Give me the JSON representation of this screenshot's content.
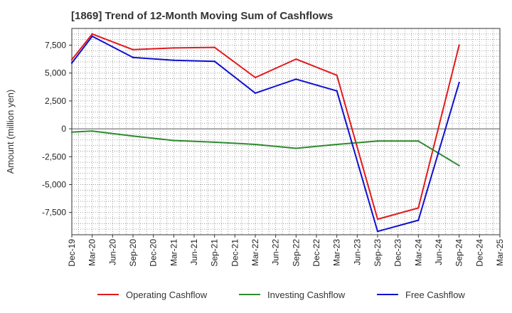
{
  "chart_data": {
    "type": "line",
    "title": "[1869]  Trend of 12-Month Moving Sum of Cashflows",
    "ylabel": "Amount (million yen)",
    "xlabel": "",
    "ylim": [
      -9500,
      9000
    ],
    "yticks": [
      7500,
      5000,
      2500,
      0,
      -2500,
      -5000,
      -7500
    ],
    "ytick_labels": [
      "7,500",
      "5,000",
      "2,500",
      "0",
      "-2,500",
      "-5,000",
      "-7,500"
    ],
    "categories": [
      "Dec-19",
      "Mar-20",
      "Jun-20",
      "Sep-20",
      "Dec-20",
      "Mar-21",
      "Jun-21",
      "Sep-21",
      "Dec-21",
      "Mar-22",
      "Jun-22",
      "Sep-22",
      "Dec-22",
      "Mar-23",
      "Jun-23",
      "Sep-23",
      "Dec-23",
      "Mar-24",
      "Jun-24",
      "Sep-24",
      "Dec-24",
      "Mar-25"
    ],
    "grid": true,
    "legend_position": "bottom",
    "series": [
      {
        "name": "Operating Cashflow",
        "color": "#e31a1c",
        "points": [
          [
            "Dec-19",
            6200
          ],
          [
            "Mar-20",
            8500
          ],
          [
            "Sep-20",
            7100
          ],
          [
            "Mar-21",
            7250
          ],
          [
            "Sep-21",
            7300
          ],
          [
            "Mar-22",
            4600
          ],
          [
            "Sep-22",
            6250
          ],
          [
            "Mar-23",
            4800
          ],
          [
            "Sep-23",
            -8100
          ],
          [
            "Mar-24",
            -7100
          ],
          [
            "Sep-24",
            7500
          ]
        ]
      },
      {
        "name": "Investing Cashflow",
        "color": "#2e8b2e",
        "points": [
          [
            "Dec-19",
            -300
          ],
          [
            "Mar-20",
            -200
          ],
          [
            "Sep-20",
            -650
          ],
          [
            "Mar-21",
            -1050
          ],
          [
            "Sep-21",
            -1200
          ],
          [
            "Mar-22",
            -1400
          ],
          [
            "Sep-22",
            -1750
          ],
          [
            "Mar-23",
            -1400
          ],
          [
            "Sep-23",
            -1100
          ],
          [
            "Mar-24",
            -1100
          ],
          [
            "Sep-24",
            -3300
          ]
        ]
      },
      {
        "name": "Free Cashflow",
        "color": "#1010d0",
        "points": [
          [
            "Dec-19",
            5900
          ],
          [
            "Mar-20",
            8300
          ],
          [
            "Sep-20",
            6400
          ],
          [
            "Mar-21",
            6150
          ],
          [
            "Sep-21",
            6050
          ],
          [
            "Mar-22",
            3200
          ],
          [
            "Sep-22",
            4450
          ],
          [
            "Mar-23",
            3400
          ],
          [
            "Sep-23",
            -9200
          ],
          [
            "Mar-24",
            -8200
          ],
          [
            "Sep-24",
            4150
          ]
        ]
      }
    ]
  }
}
